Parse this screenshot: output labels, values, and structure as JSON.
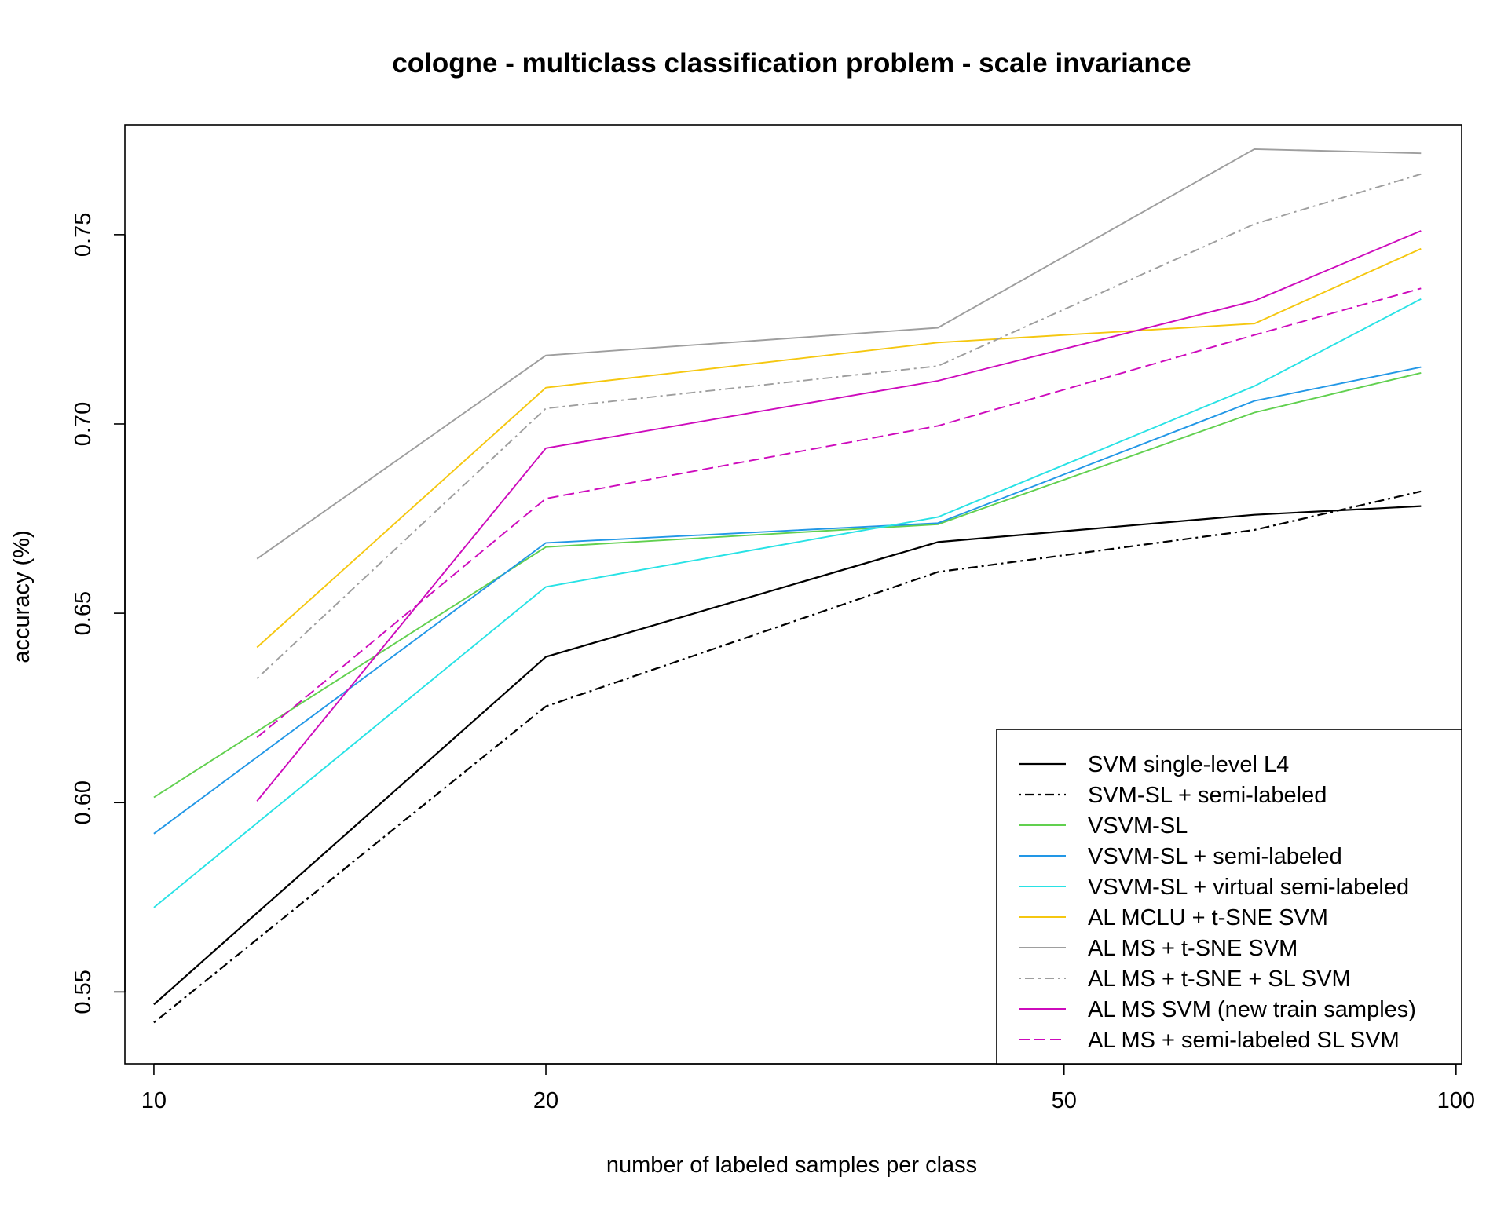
{
  "chart_data": {
    "type": "line",
    "title": "cologne - multiclass classification problem - scale invariance",
    "xlabel": "number of labeled samples per class",
    "ylabel": "accuracy (%)",
    "x_scale": "log",
    "xlim": [
      9.5,
      101
    ],
    "ylim": [
      0.531,
      0.779
    ],
    "xticks": [
      10,
      20,
      50,
      100
    ],
    "xtick_labels": [
      "10",
      "20",
      "50",
      "100"
    ],
    "yticks": [
      0.55,
      0.6,
      0.65,
      0.7,
      0.75
    ],
    "ytick_labels": [
      "0.55",
      "0.60",
      "0.65",
      "0.70",
      "0.75"
    ],
    "grid": false,
    "legend_position": "bottom-right",
    "series": [
      {
        "name": "SVM single-level L4",
        "color": "#000000",
        "dash": "solid",
        "x": [
          10,
          20,
          40,
          70,
          94
        ],
        "y": [
          0.5467,
          0.6385,
          0.6688,
          0.676,
          0.6783
        ]
      },
      {
        "name": "SVM-SL + semi-labeled",
        "color": "#000000",
        "dash": "dotdash",
        "x": [
          10,
          20,
          40,
          70,
          94
        ],
        "y": [
          0.5419,
          0.6254,
          0.6609,
          0.672,
          0.6822
        ]
      },
      {
        "name": "VSVM-SL",
        "color": "#61D04F",
        "dash": "solid",
        "x": [
          10,
          20,
          40,
          70,
          94
        ],
        "y": [
          0.6014,
          0.6675,
          0.6735,
          0.703,
          0.7135
        ]
      },
      {
        "name": "VSVM-SL + semi-labeled",
        "color": "#2297E6",
        "dash": "solid",
        "x": [
          10,
          20,
          40,
          70,
          94
        ],
        "y": [
          0.5918,
          0.6686,
          0.6738,
          0.7061,
          0.715
        ]
      },
      {
        "name": "VSVM-SL + virtual semi-labeled",
        "color": "#28E2E5",
        "dash": "solid",
        "x": [
          10,
          20,
          40,
          70,
          94
        ],
        "y": [
          0.5723,
          0.657,
          0.6754,
          0.71,
          0.733
        ]
      },
      {
        "name": "AL MCLU + t-SNE SVM",
        "color": "#F5C710",
        "dash": "solid",
        "x": [
          12,
          20,
          40,
          70,
          94
        ],
        "y": [
          0.641,
          0.7096,
          0.7215,
          0.7265,
          0.7463
        ]
      },
      {
        "name": "AL MS + t-SNE SVM",
        "color": "#9E9E9E",
        "dash": "solid",
        "x": [
          12,
          20,
          40,
          70,
          94
        ],
        "y": [
          0.6644,
          0.7181,
          0.7254,
          0.7726,
          0.7715
        ]
      },
      {
        "name": "AL MS + t-SNE + SL SVM",
        "color": "#9E9E9E",
        "dash": "dotdash",
        "x": [
          12,
          20,
          40,
          70,
          94
        ],
        "y": [
          0.6328,
          0.7041,
          0.7153,
          0.7528,
          0.766
        ]
      },
      {
        "name": "AL MS SVM (new train samples)",
        "color": "#CD0BBC",
        "dash": "solid",
        "x": [
          12,
          20,
          40,
          70,
          94
        ],
        "y": [
          0.6004,
          0.6936,
          0.7114,
          0.7325,
          0.751
        ]
      },
      {
        "name": "AL MS + semi-labeled SL SVM",
        "color": "#CD0BBC",
        "dash": "dashed",
        "x": [
          12,
          20,
          40,
          70,
          94
        ],
        "y": [
          0.6172,
          0.6803,
          0.6995,
          0.7235,
          0.7358
        ]
      }
    ]
  }
}
